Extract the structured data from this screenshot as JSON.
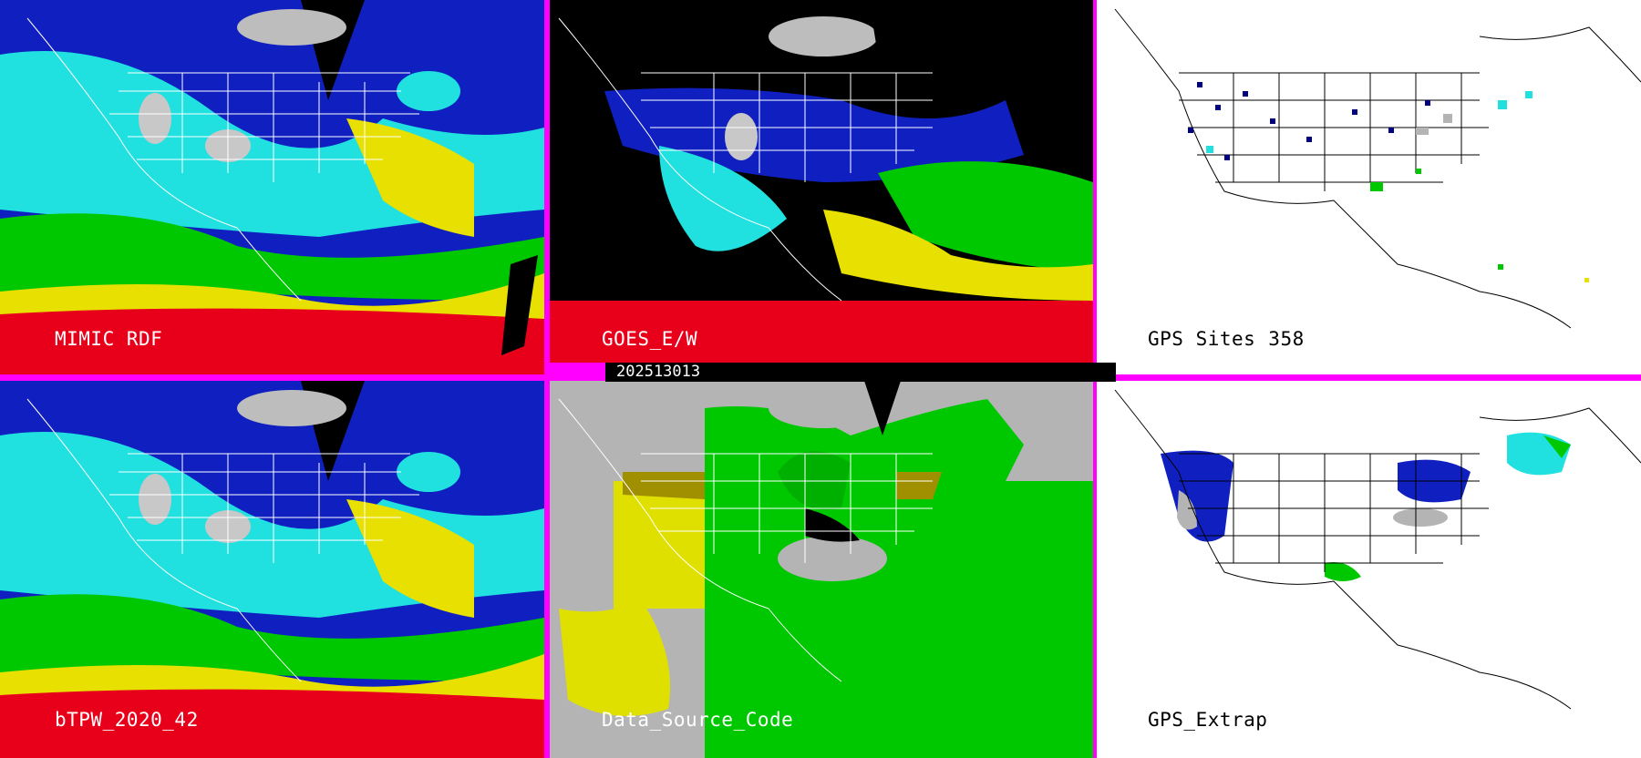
{
  "panels": [
    {
      "label": "MIMIC RDF",
      "theme": "tpw"
    },
    {
      "label": "GOES_E/W",
      "theme": "goes"
    },
    {
      "label": "GPS Sites",
      "count": "358",
      "theme": "gps"
    },
    {
      "label": "bTPW_2020_42",
      "theme": "tpw"
    },
    {
      "label": "Data_Source_Code",
      "theme": "source"
    },
    {
      "label": "GPS_Extrap",
      "theme": "gps"
    }
  ],
  "timestamp": "202513013",
  "colors": {
    "separator": "#ff00ff",
    "red": "#e8001a",
    "yellow": "#e8e000",
    "green": "#00c800",
    "cyan": "#20e0e0",
    "blue": "#1020c0",
    "navy": "#000080",
    "gray": "#b4b4b4",
    "olive": "#a09000"
  }
}
